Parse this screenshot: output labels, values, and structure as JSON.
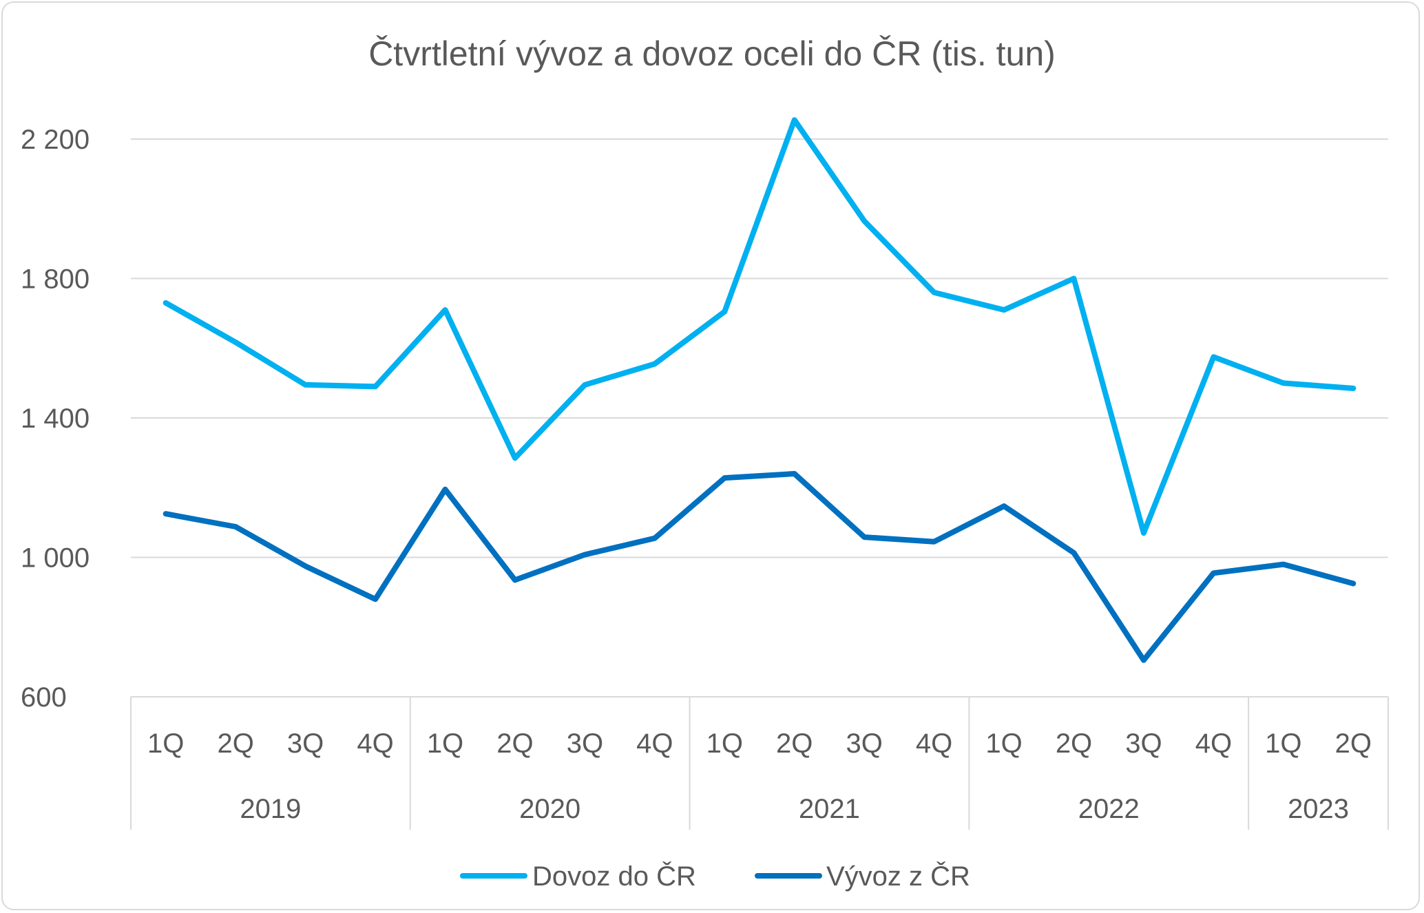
{
  "chart_data": {
    "type": "line",
    "title": "Čtvrtletní vývoz a dovoz oceli do ČR (tis. tun)",
    "xlabel": "",
    "ylabel": "",
    "ylim": [
      600,
      2200
    ],
    "yticks": [
      600,
      1000,
      1400,
      1800,
      2200
    ],
    "ytick_labels": [
      "600",
      "1 000",
      "1 400",
      "1 800",
      "2 200"
    ],
    "grid": true,
    "legend_position": "bottom",
    "categories": [
      "1Q",
      "2Q",
      "3Q",
      "4Q",
      "1Q",
      "2Q",
      "3Q",
      "4Q",
      "1Q",
      "2Q",
      "3Q",
      "4Q",
      "1Q",
      "2Q",
      "3Q",
      "4Q",
      "1Q",
      "2Q"
    ],
    "groups": [
      {
        "label": "2019",
        "count": 4
      },
      {
        "label": "2020",
        "count": 4
      },
      {
        "label": "2021",
        "count": 4
      },
      {
        "label": "2022",
        "count": 4
      },
      {
        "label": "2023",
        "count": 2
      }
    ],
    "series": [
      {
        "name": "Dovoz do ČR",
        "color": "#00b0f0",
        "values": [
          1730,
          1617,
          1495,
          1490,
          1710,
          1285,
          1495,
          1555,
          1705,
          2255,
          1965,
          1760,
          1710,
          1800,
          1070,
          1575,
          1500,
          1485
        ]
      },
      {
        "name": "Vývoz z ČR",
        "color": "#0070c0",
        "values": [
          1125,
          1088,
          975,
          880,
          1195,
          935,
          1008,
          1055,
          1228,
          1240,
          1058,
          1045,
          1147,
          1013,
          705,
          955,
          980,
          925
        ]
      }
    ]
  }
}
